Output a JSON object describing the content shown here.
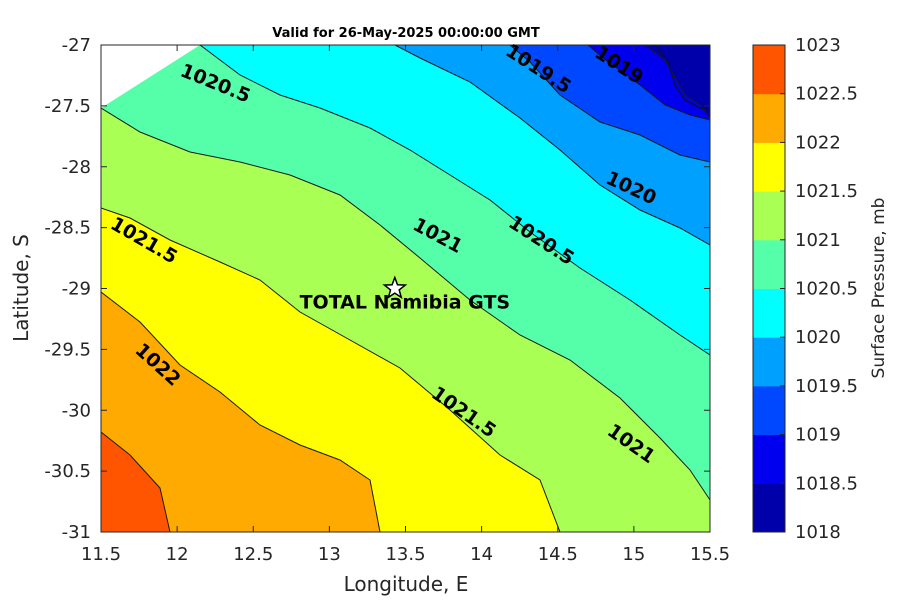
{
  "chart_data": {
    "type": "contour",
    "title": "Valid for 26-May-2025 00:00:00 GMT",
    "xlabel": "Longitude, E",
    "ylabel": "Latitude, S",
    "xlim": [
      11.5,
      15.5
    ],
    "ylim": [
      -31,
      -27
    ],
    "x_ticks": [
      "11.5",
      "12",
      "12.5",
      "13",
      "13.5",
      "14",
      "14.5",
      "15",
      "15.5"
    ],
    "y_ticks": [
      "-27",
      "-27.5",
      "-28",
      "-28.5",
      "-29",
      "-29.5",
      "-30",
      "-30.5",
      "-31"
    ],
    "grid": false,
    "levels": [
      1018,
      1018.5,
      1019,
      1019.5,
      1020,
      1020.5,
      1021,
      1021.5,
      1022,
      1022.5,
      1023
    ],
    "level_colors": [
      "#0000aa",
      "#0000ee",
      "#0048ff",
      "#00a0ff",
      "#00ffff",
      "#55ffaa",
      "#aaff55",
      "#ffff00",
      "#ffaa00",
      "#ff5500",
      "#ff0000"
    ],
    "contour_labels": [
      {
        "text": "1020.5",
        "x": 12.25,
        "y": -27.32,
        "angle": 22
      },
      {
        "text": "1019.5",
        "x": 14.37,
        "y": -27.2,
        "angle": 33
      },
      {
        "text": "1019",
        "x": 14.9,
        "y": -27.17,
        "angle": 33
      },
      {
        "text": "1020",
        "x": 14.98,
        "y": -28.18,
        "angle": 25
      },
      {
        "text": "1020.5",
        "x": 14.39,
        "y": -28.61,
        "angle": 33
      },
      {
        "text": "1021",
        "x": 13.71,
        "y": -28.57,
        "angle": 28
      },
      {
        "text": "1021.5",
        "x": 11.78,
        "y": -28.61,
        "angle": 30
      },
      {
        "text": "1022",
        "x": 11.87,
        "y": -29.63,
        "angle": 42
      },
      {
        "text": "1021.5",
        "x": 13.88,
        "y": -30.02,
        "angle": 35
      },
      {
        "text": "1021",
        "x": 14.98,
        "y": -30.28,
        "angle": 35
      }
    ],
    "site": {
      "name": "TOTAL Namibia GTS",
      "lon": 13.43,
      "lat": -29.0
    },
    "colorbar": {
      "label": "Surface Pressure, mb",
      "ticks": [
        "1023",
        "1022.5",
        "1022",
        "1021.5",
        "1021",
        "1020.5",
        "1020",
        "1019.5",
        "1019",
        "1018.5",
        "1018"
      ]
    }
  }
}
